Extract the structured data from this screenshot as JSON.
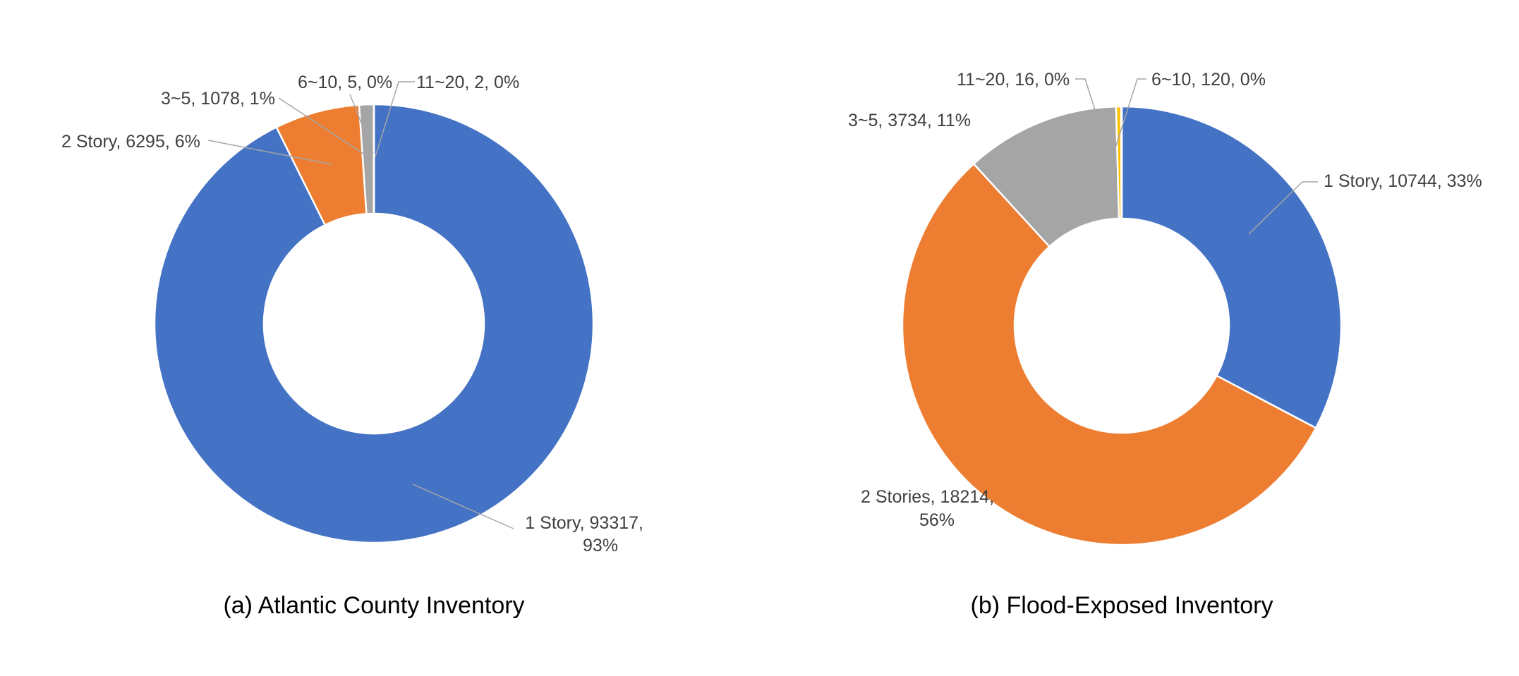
{
  "chart_data": [
    {
      "type": "pie",
      "variant": "donut",
      "caption": "(a) Atlantic County Inventory",
      "start_angle": "12 o'clock",
      "direction": "clockwise",
      "slices": [
        {
          "category": "1 Story",
          "value": 93317,
          "percent": "93%",
          "label_lines": [
            "1 Story, 93317,",
            "93%"
          ],
          "color": "#4472c4"
        },
        {
          "category": "2 Story",
          "value": 6295,
          "percent": "6%",
          "label_lines": [
            "2 Story, 6295, 6%"
          ],
          "color": "#ed7d31"
        },
        {
          "category": "3~5",
          "value": 1078,
          "percent": "1%",
          "label_lines": [
            "3~5, 1078, 1%"
          ],
          "color": "#a5a5a5"
        },
        {
          "category": "6~10",
          "value": 5,
          "percent": "0%",
          "label_lines": [
            "6~10, 5, 0%"
          ],
          "color": "#ffc000"
        },
        {
          "category": "11~20",
          "value": 2,
          "percent": "0%",
          "label_lines": [
            "11~20, 2, 0%"
          ],
          "color": "#5b9bd5"
        }
      ]
    },
    {
      "type": "pie",
      "variant": "donut",
      "caption": "(b) Flood-Exposed Inventory",
      "start_angle": "12 o'clock",
      "direction": "clockwise",
      "slices": [
        {
          "category": "1 Story",
          "value": 10744,
          "percent": "33%",
          "label_lines": [
            "1 Story, 10744, 33%"
          ],
          "color": "#4472c4"
        },
        {
          "category": "2 Stories",
          "value": 18214,
          "percent": "56%",
          "label_lines": [
            "2 Stories, 18214,",
            "56%"
          ],
          "color": "#ed7d31"
        },
        {
          "category": "3~5",
          "value": 3734,
          "percent": "11%",
          "label_lines": [
            "3~5, 3734, 11%"
          ],
          "color": "#a5a5a5"
        },
        {
          "category": "6~10",
          "value": 120,
          "percent": "0%",
          "label_lines": [
            "6~10, 120, 0%"
          ],
          "color": "#ffc000"
        },
        {
          "category": "11~20",
          "value": 16,
          "percent": "0%",
          "label_lines": [
            "11~20, 16, 0%"
          ],
          "color": "#5b9bd5"
        }
      ]
    }
  ]
}
